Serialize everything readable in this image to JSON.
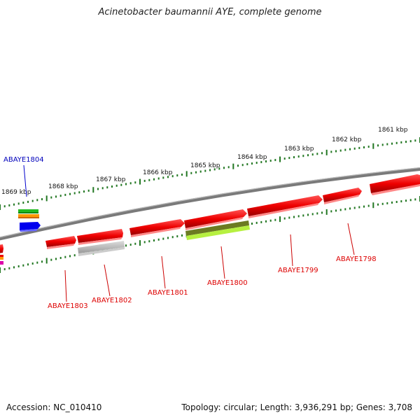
{
  "title": "Acinetobacter baumannii AYE, complete genome",
  "footer": {
    "accession": "Accession: NC_010410",
    "topology": "Topology: circular; Length: 3,936,291 bp; Genes: 3,708"
  },
  "scale": {
    "ticks": [
      "1861 kbp",
      "1862 kbp",
      "1863 kbp",
      "1864 kbp",
      "1865 kbp",
      "1866 kbp",
      "1867 kbp",
      "1868 kbp",
      "1869 kbp"
    ]
  },
  "genes": [
    {
      "label": "ABAYE1798",
      "color": "#ee0000"
    },
    {
      "label": "ABAYE1799",
      "color": "#ee0000"
    },
    {
      "label": "ABAYE1800",
      "color": "#ee0000"
    },
    {
      "label": "ABAYE1801",
      "color": "#ee0000"
    },
    {
      "label": "ABAYE1802",
      "color": "#ee0000"
    },
    {
      "label": "ABAYE1803",
      "color": "#ee0000"
    },
    {
      "label": "ABAYE1804",
      "color": "#0000cc"
    }
  ],
  "colors": {
    "backbone": "#808080",
    "tick": "#227722",
    "gene_red": "#ee0000",
    "gene_blue": "#0000ee",
    "feature_green": "#22bb22",
    "feature_orange": "#ff9900",
    "feature_olive": "#667722",
    "feature_lime": "#aaee44",
    "feature_grey": "#aaaaaa",
    "feature_magenta": "#dd00aa"
  }
}
